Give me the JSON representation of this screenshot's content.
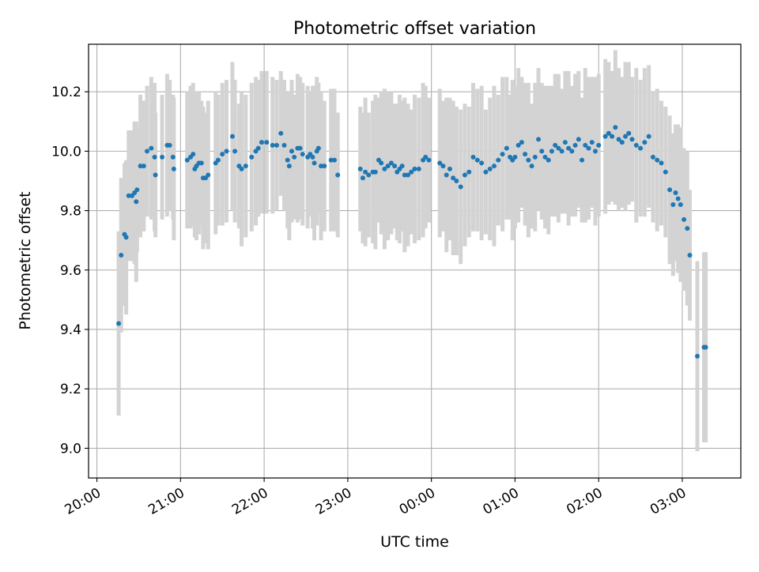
{
  "chart_data": {
    "type": "scatter",
    "title": "Photometric offset variation",
    "xlabel": "UTC time",
    "ylabel": "Photometric offset",
    "x_unit": "hours after 20:00 UTC",
    "xlim": [
      -0.1,
      7.7
    ],
    "ylim": [
      8.9,
      10.36
    ],
    "x_ticks": [
      {
        "value": 0,
        "label": "20:00"
      },
      {
        "value": 1,
        "label": "21:00"
      },
      {
        "value": 2,
        "label": "22:00"
      },
      {
        "value": 3,
        "label": "23:00"
      },
      {
        "value": 4,
        "label": "00:00"
      },
      {
        "value": 5,
        "label": "01:00"
      },
      {
        "value": 6,
        "label": "02:00"
      },
      {
        "value": 7,
        "label": "03:00"
      }
    ],
    "y_ticks": [
      {
        "value": 9.0,
        "label": "9.0"
      },
      {
        "value": 9.2,
        "label": "9.2"
      },
      {
        "value": 9.4,
        "label": "9.4"
      },
      {
        "value": 9.6,
        "label": "9.6"
      },
      {
        "value": 9.8,
        "label": "9.8"
      },
      {
        "value": 10.0,
        "label": "10.0"
      },
      {
        "value": 10.2,
        "label": "10.2"
      }
    ],
    "grid": true,
    "colors": {
      "points": "#1f77b4",
      "error_bars": "#d3d3d3",
      "grid": "#b0b0b0"
    },
    "series": [
      {
        "x": [
          0.26,
          0.29,
          0.33,
          0.35,
          0.38,
          0.42,
          0.45,
          0.47,
          0.48,
          0.52,
          0.56,
          0.6,
          0.65,
          0.69,
          0.7,
          0.78,
          0.84,
          0.87,
          0.91,
          0.92,
          1.08,
          1.12,
          1.15,
          1.17,
          1.19,
          1.22,
          1.25,
          1.27,
          1.3,
          1.33,
          1.42,
          1.45,
          1.5,
          1.55,
          1.62,
          1.65,
          1.7,
          1.73,
          1.78,
          1.85,
          1.9,
          1.93,
          1.97,
          2.03,
          2.1,
          2.15,
          2.2,
          2.24,
          2.28,
          2.3,
          2.33,
          2.36,
          2.4,
          2.43,
          2.46,
          2.52,
          2.55,
          2.58,
          2.6,
          2.63,
          2.65,
          2.68,
          2.72,
          2.8,
          2.84,
          2.88,
          3.15,
          3.18,
          3.21,
          3.25,
          3.3,
          3.33,
          3.37,
          3.4,
          3.44,
          3.48,
          3.52,
          3.56,
          3.59,
          3.62,
          3.65,
          3.68,
          3.72,
          3.76,
          3.8,
          3.85,
          3.9,
          3.93,
          3.97,
          4.1,
          4.14,
          4.18,
          4.22,
          4.26,
          4.3,
          4.35,
          4.4,
          4.45,
          4.5,
          4.55,
          4.6,
          4.65,
          4.7,
          4.75,
          4.8,
          4.85,
          4.9,
          4.94,
          4.97,
          5.0,
          5.04,
          5.08,
          5.12,
          5.16,
          5.2,
          5.24,
          5.28,
          5.32,
          5.36,
          5.4,
          5.44,
          5.48,
          5.52,
          5.56,
          5.6,
          5.64,
          5.68,
          5.72,
          5.76,
          5.8,
          5.84,
          5.88,
          5.92,
          5.96,
          6.0,
          6.08,
          6.12,
          6.16,
          6.2,
          6.24,
          6.28,
          6.32,
          6.36,
          6.4,
          6.45,
          6.5,
          6.55,
          6.6,
          6.65,
          6.7,
          6.75,
          6.8,
          6.85,
          6.89,
          6.92,
          6.95,
          6.98,
          7.02,
          7.06,
          7.09,
          7.18,
          7.26,
          7.28
        ],
        "y": [
          9.42,
          9.65,
          9.72,
          9.71,
          9.85,
          9.85,
          9.86,
          9.83,
          9.87,
          9.95,
          9.95,
          10.0,
          10.01,
          9.98,
          9.92,
          9.98,
          10.02,
          10.02,
          9.98,
          9.94,
          9.97,
          9.98,
          9.99,
          9.94,
          9.95,
          9.96,
          9.96,
          9.91,
          9.91,
          9.92,
          9.96,
          9.97,
          9.99,
          10.0,
          10.05,
          10.0,
          9.95,
          9.94,
          9.95,
          9.98,
          10.0,
          10.01,
          10.03,
          10.03,
          10.02,
          10.02,
          10.06,
          10.02,
          9.97,
          9.95,
          10.0,
          9.98,
          10.01,
          10.01,
          9.99,
          9.98,
          9.99,
          9.98,
          9.96,
          10.0,
          10.01,
          9.95,
          9.95,
          9.97,
          9.97,
          9.92,
          9.94,
          9.91,
          9.93,
          9.92,
          9.93,
          9.93,
          9.97,
          9.96,
          9.94,
          9.95,
          9.96,
          9.95,
          9.93,
          9.94,
          9.95,
          9.92,
          9.92,
          9.93,
          9.94,
          9.94,
          9.97,
          9.98,
          9.97,
          9.96,
          9.95,
          9.92,
          9.94,
          9.91,
          9.9,
          9.88,
          9.92,
          9.93,
          9.98,
          9.97,
          9.96,
          9.93,
          9.94,
          9.95,
          9.97,
          9.99,
          10.01,
          9.98,
          9.97,
          9.98,
          10.02,
          10.03,
          9.99,
          9.97,
          9.95,
          9.98,
          10.04,
          10.0,
          9.98,
          9.97,
          10.0,
          10.02,
          10.01,
          10.0,
          10.03,
          10.01,
          10.0,
          10.02,
          10.04,
          9.97,
          10.02,
          10.01,
          10.03,
          10.0,
          10.02,
          10.05,
          10.06,
          10.05,
          10.08,
          10.04,
          10.03,
          10.05,
          10.06,
          10.04,
          10.02,
          10.01,
          10.03,
          10.05,
          9.98,
          9.97,
          9.96,
          9.93,
          9.87,
          9.82,
          9.86,
          9.84,
          9.82,
          9.77,
          9.74,
          9.65,
          9.31,
          9.34,
          9.34
        ],
        "err": [
          0.31,
          0.26,
          0.24,
          0.26,
          0.22,
          0.22,
          0.24,
          0.27,
          0.21,
          0.24,
          0.22,
          0.22,
          0.24,
          0.25,
          0.21,
          0.21,
          0.24,
          0.22,
          0.21,
          0.24,
          0.23,
          0.24,
          0.24,
          0.23,
          0.25,
          0.24,
          0.21,
          0.24,
          0.22,
          0.25,
          0.24,
          0.22,
          0.24,
          0.24,
          0.25,
          0.24,
          0.21,
          0.26,
          0.24,
          0.25,
          0.25,
          0.23,
          0.24,
          0.24,
          0.23,
          0.22,
          0.21,
          0.22,
          0.23,
          0.25,
          0.24,
          0.21,
          0.25,
          0.24,
          0.24,
          0.24,
          0.21,
          0.24,
          0.26,
          0.25,
          0.22,
          0.25,
          0.22,
          0.24,
          0.24,
          0.21,
          0.21,
          0.22,
          0.25,
          0.21,
          0.24,
          0.26,
          0.21,
          0.24,
          0.27,
          0.25,
          0.24,
          0.21,
          0.23,
          0.25,
          0.22,
          0.26,
          0.24,
          0.21,
          0.25,
          0.24,
          0.26,
          0.24,
          0.21,
          0.25,
          0.22,
          0.26,
          0.24,
          0.26,
          0.25,
          0.26,
          0.24,
          0.22,
          0.25,
          0.24,
          0.26,
          0.21,
          0.24,
          0.27,
          0.22,
          0.26,
          0.24,
          0.21,
          0.27,
          0.24,
          0.26,
          0.22,
          0.24,
          0.26,
          0.21,
          0.25,
          0.24,
          0.23,
          0.24,
          0.25,
          0.22,
          0.24,
          0.25,
          0.21,
          0.24,
          0.26,
          0.22,
          0.24,
          0.23,
          0.21,
          0.26,
          0.24,
          0.22,
          0.25,
          0.24,
          0.26,
          0.24,
          0.22,
          0.26,
          0.24,
          0.22,
          0.25,
          0.24,
          0.21,
          0.26,
          0.23,
          0.25,
          0.24,
          0.22,
          0.24,
          0.21,
          0.22,
          0.25,
          0.24,
          0.23,
          0.25,
          0.26,
          0.24,
          0.26,
          0.22,
          0.32,
          0.32,
          0.32
        ]
      }
    ]
  }
}
